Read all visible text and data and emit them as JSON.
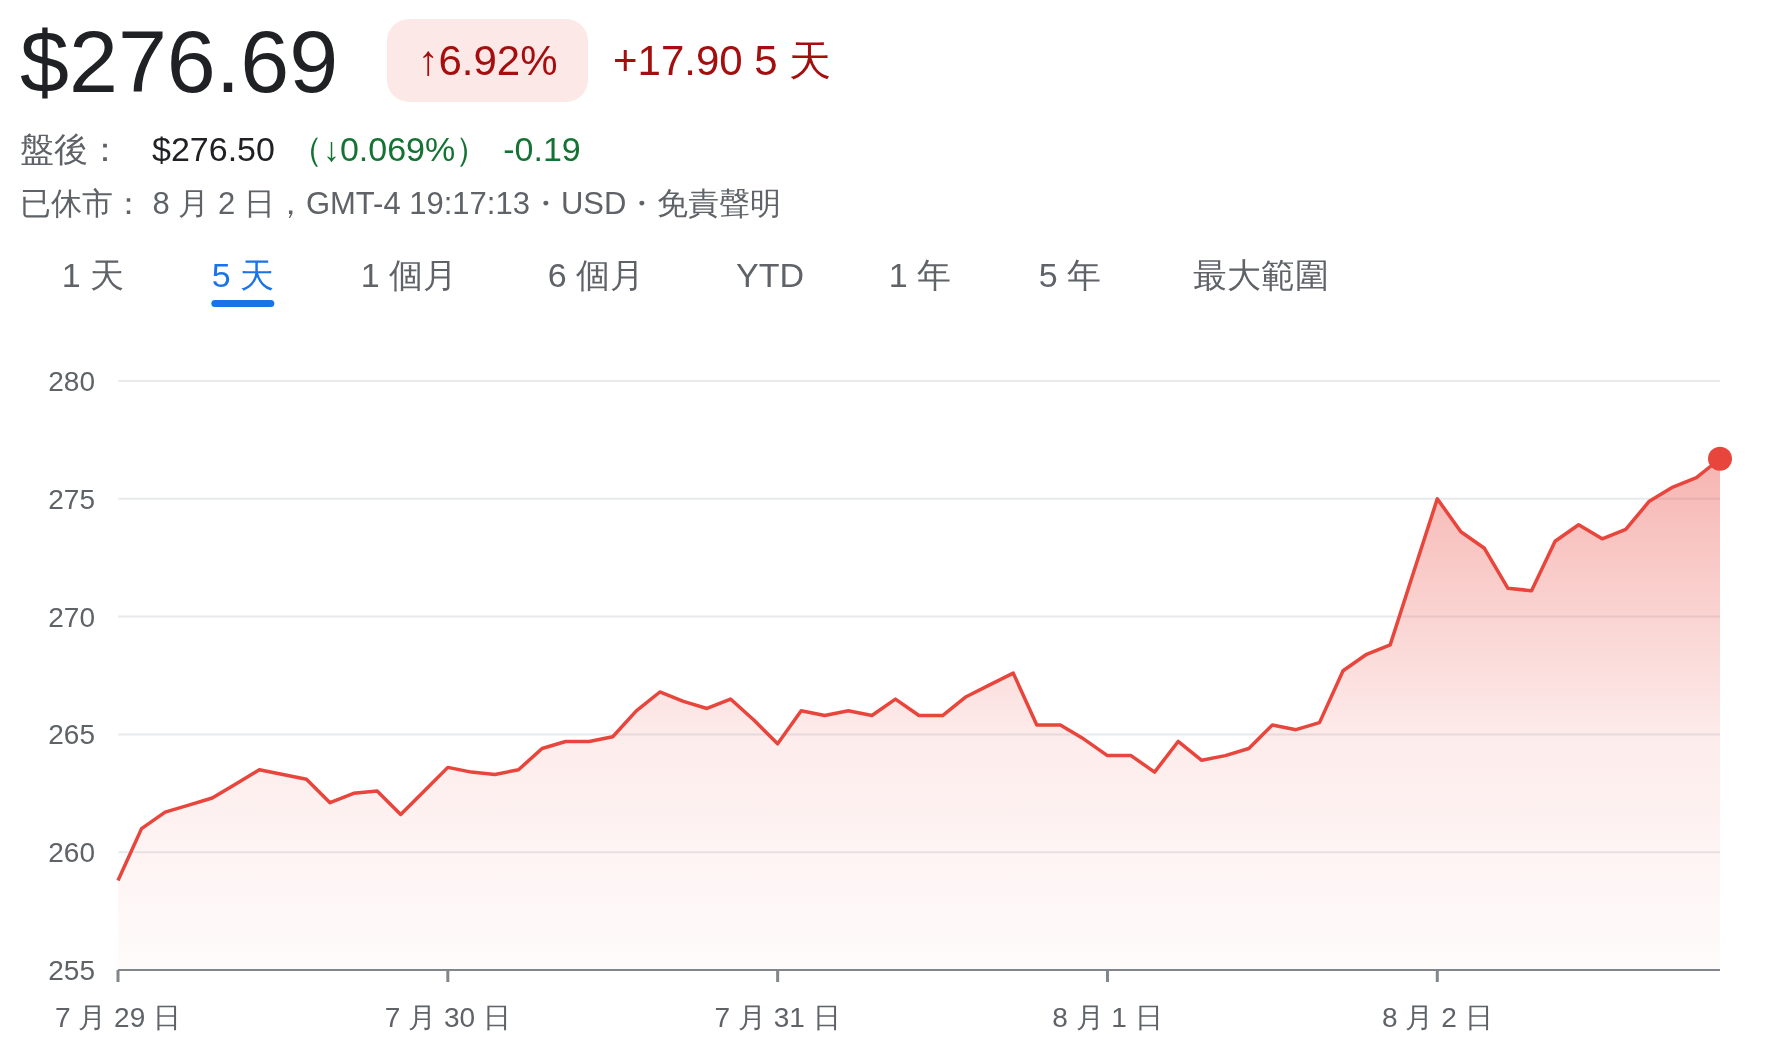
{
  "chart_data": {
    "type": "area",
    "title": "$276.69",
    "annotations": [
      "↑6.92%",
      "+17.90 5 天",
      "盤後：",
      "$276.50",
      "（↓0.069%）",
      "-0.19",
      "已休市： 8 月 2 日，GMT-4 19:17:13・USD・免責聲明",
      "1 天",
      "5 天",
      "1 個月",
      "6 個月",
      "YTD",
      "1 年",
      "5 年",
      "最大範圍"
    ],
    "categories": [
      "7 月 29 日",
      null,
      null,
      null,
      null,
      null,
      null,
      null,
      null,
      null,
      null,
      null,
      null,
      null,
      "7 月 30 日",
      null,
      null,
      null,
      null,
      null,
      null,
      null,
      null,
      null,
      null,
      null,
      null,
      null,
      "7 月 31 日",
      null,
      null,
      null,
      null,
      null,
      null,
      null,
      null,
      null,
      null,
      null,
      null,
      null,
      "8 月 1 日",
      null,
      null,
      null,
      null,
      null,
      null,
      null,
      null,
      null,
      null,
      null,
      null,
      null,
      "8 月 2 日",
      null,
      null,
      null,
      null,
      null,
      null,
      null,
      null,
      null,
      null,
      null,
      null
    ],
    "ylim": [
      255,
      280
    ],
    "yticks": [
      255,
      260,
      265,
      270,
      275,
      280
    ],
    "grid": "y",
    "series": [
      {
        "color": "#e8453c",
        "values": [
          258.8,
          261.0,
          261.7,
          262.0,
          262.3,
          262.9,
          263.5,
          263.3,
          263.1,
          262.1,
          262.5,
          262.6,
          261.6,
          262.6,
          263.6,
          263.4,
          263.3,
          263.5,
          264.4,
          264.7,
          264.7,
          264.9,
          266.0,
          266.8,
          266.4,
          266.1,
          266.5,
          265.6,
          264.6,
          266.0,
          265.8,
          266.0,
          265.8,
          266.5,
          265.8,
          265.8,
          266.6,
          267.1,
          267.6,
          265.4,
          265.4,
          264.8,
          264.1,
          264.1,
          263.4,
          264.7,
          263.9,
          264.1,
          264.4,
          265.4,
          265.2,
          265.5,
          267.7,
          268.4,
          268.8,
          271.9,
          275.0,
          273.6,
          272.9,
          271.2,
          271.1,
          273.2,
          273.9,
          273.3,
          273.7,
          274.9,
          275.5,
          275.9,
          276.7
        ]
      },
      {
        "type": "scatter",
        "color": "#e8453c",
        "marker": "circle",
        "values": [
          null,
          null,
          null,
          null,
          null,
          null,
          null,
          null,
          null,
          null,
          null,
          null,
          null,
          null,
          null,
          null,
          null,
          null,
          null,
          null,
          null,
          null,
          null,
          null,
          null,
          null,
          null,
          null,
          null,
          null,
          null,
          null,
          null,
          null,
          null,
          null,
          null,
          null,
          null,
          null,
          null,
          null,
          null,
          null,
          null,
          null,
          null,
          null,
          null,
          null,
          null,
          null,
          null,
          null,
          null,
          null,
          null,
          null,
          null,
          null,
          null,
          null,
          null,
          null,
          null,
          null,
          null,
          null,
          276.7
        ]
      }
    ]
  }
}
